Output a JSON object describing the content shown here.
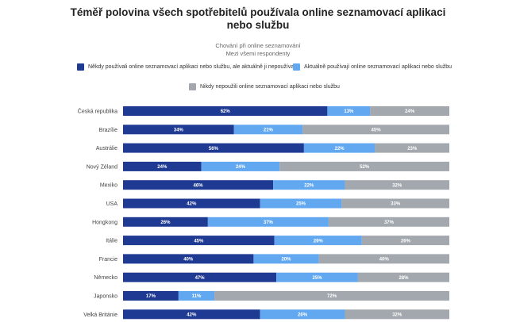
{
  "chart_data": {
    "type": "bar",
    "orientation": "horizontal",
    "stacked": true,
    "normalized": true,
    "title_line1": "Téměř polovina všech spotřebitelů používala online seznamovací aplikaci",
    "title_line2": "nebo službu",
    "subtitle_line1": "Chování při online seznamování",
    "subtitle_line2": "Mezi všemi respondenty",
    "legend_position": "top",
    "categories": [
      "Česká republika",
      "Brazílie",
      "Austrálie",
      "Nový Zéland",
      "Mexiko",
      "USA",
      "Hongkong",
      "Itálie",
      "Francie",
      "Německo",
      "Japonsko",
      "Velká Británie"
    ],
    "series": [
      {
        "name": "Někdy používali online seznamovací aplikaci nebo službu, ale aktuálně ji nepoužívají",
        "color": "#1f3a93",
        "values": [
          62,
          34,
          56,
          24,
          46,
          42,
          26,
          45,
          40,
          47,
          17,
          42
        ],
        "labels": [
          "62%",
          "34%",
          "56%",
          "24%",
          "46%",
          "42%",
          "26%",
          "45%",
          "40%",
          "47%",
          "17%",
          "42%"
        ]
      },
      {
        "name": "Aktuálně používají online seznamovací aplikaci nebo službu",
        "color": "#62a8f0",
        "values": [
          13,
          21,
          22,
          24,
          22,
          25,
          37,
          26,
          20,
          25,
          11,
          26
        ],
        "labels": [
          "13%",
          "21%",
          "22%",
          "24%",
          "22%",
          "25%",
          "37%",
          "26%",
          "20%",
          "25%",
          "11%",
          "26%"
        ]
      },
      {
        "name": "Nikdy nepoužili online seznamovací aplikaci nebo službu",
        "color": "#a3a8ae",
        "values": [
          24,
          45,
          23,
          52,
          32,
          33,
          37,
          26,
          40,
          28,
          72,
          32
        ],
        "labels": [
          "24%",
          "45%",
          "23%",
          "52%",
          "32%",
          "33%",
          "37%",
          "26%",
          "40%",
          "28%",
          "72%",
          "32%"
        ]
      }
    ]
  }
}
